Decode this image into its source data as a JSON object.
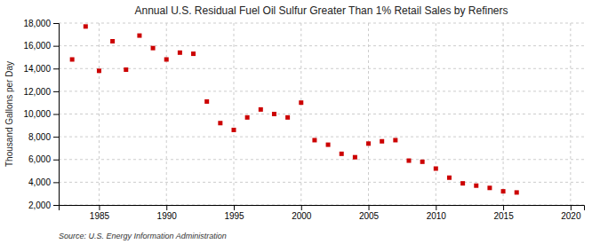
{
  "chart_data": {
    "type": "scatter",
    "title": "Annual U.S. Residual Fuel Oil Sulfur Greater Than 1% Retail Sales by Refiners",
    "y_label": "Thousand Gallons per Day",
    "source": "Source: U.S. Energy Information Administration",
    "color": "#cc0000",
    "marker": "square",
    "grid": true,
    "x": [
      1983,
      1984,
      1985,
      1986,
      1987,
      1988,
      1989,
      1990,
      1991,
      1992,
      1993,
      1994,
      1995,
      1996,
      1997,
      1998,
      1999,
      2000,
      2001,
      2002,
      2003,
      2004,
      2005,
      2006,
      2007,
      2008,
      2009,
      2010,
      2011,
      2012,
      2013,
      2014,
      2015,
      2016
    ],
    "values": [
      14800,
      17700,
      13800,
      16400,
      13900,
      16900,
      15800,
      14800,
      15400,
      15300,
      11100,
      9200,
      8600,
      9700,
      10400,
      10000,
      9700,
      11000,
      7700,
      7300,
      6500,
      6200,
      7400,
      7600,
      7700,
      5900,
      5800,
      5200,
      4400,
      3900,
      3700,
      3500,
      3200,
      3100
    ],
    "xlim": [
      1982,
      2021
    ],
    "ylim": [
      2000,
      18000
    ],
    "xticks": [
      1985,
      1990,
      1995,
      2000,
      2005,
      2010,
      2015,
      2020
    ],
    "yticks": [
      {
        "value": 2000,
        "label": "2,000"
      },
      {
        "value": 4000,
        "label": "4,000"
      },
      {
        "value": 6000,
        "label": "6,000"
      },
      {
        "value": 8000,
        "label": "8,000"
      },
      {
        "value": 10000,
        "label": "10,000"
      },
      {
        "value": 12000,
        "label": "12,000"
      },
      {
        "value": 14000,
        "label": "14,000"
      },
      {
        "value": 16000,
        "label": "16,000"
      },
      {
        "value": 18000,
        "label": "18,000"
      }
    ]
  }
}
